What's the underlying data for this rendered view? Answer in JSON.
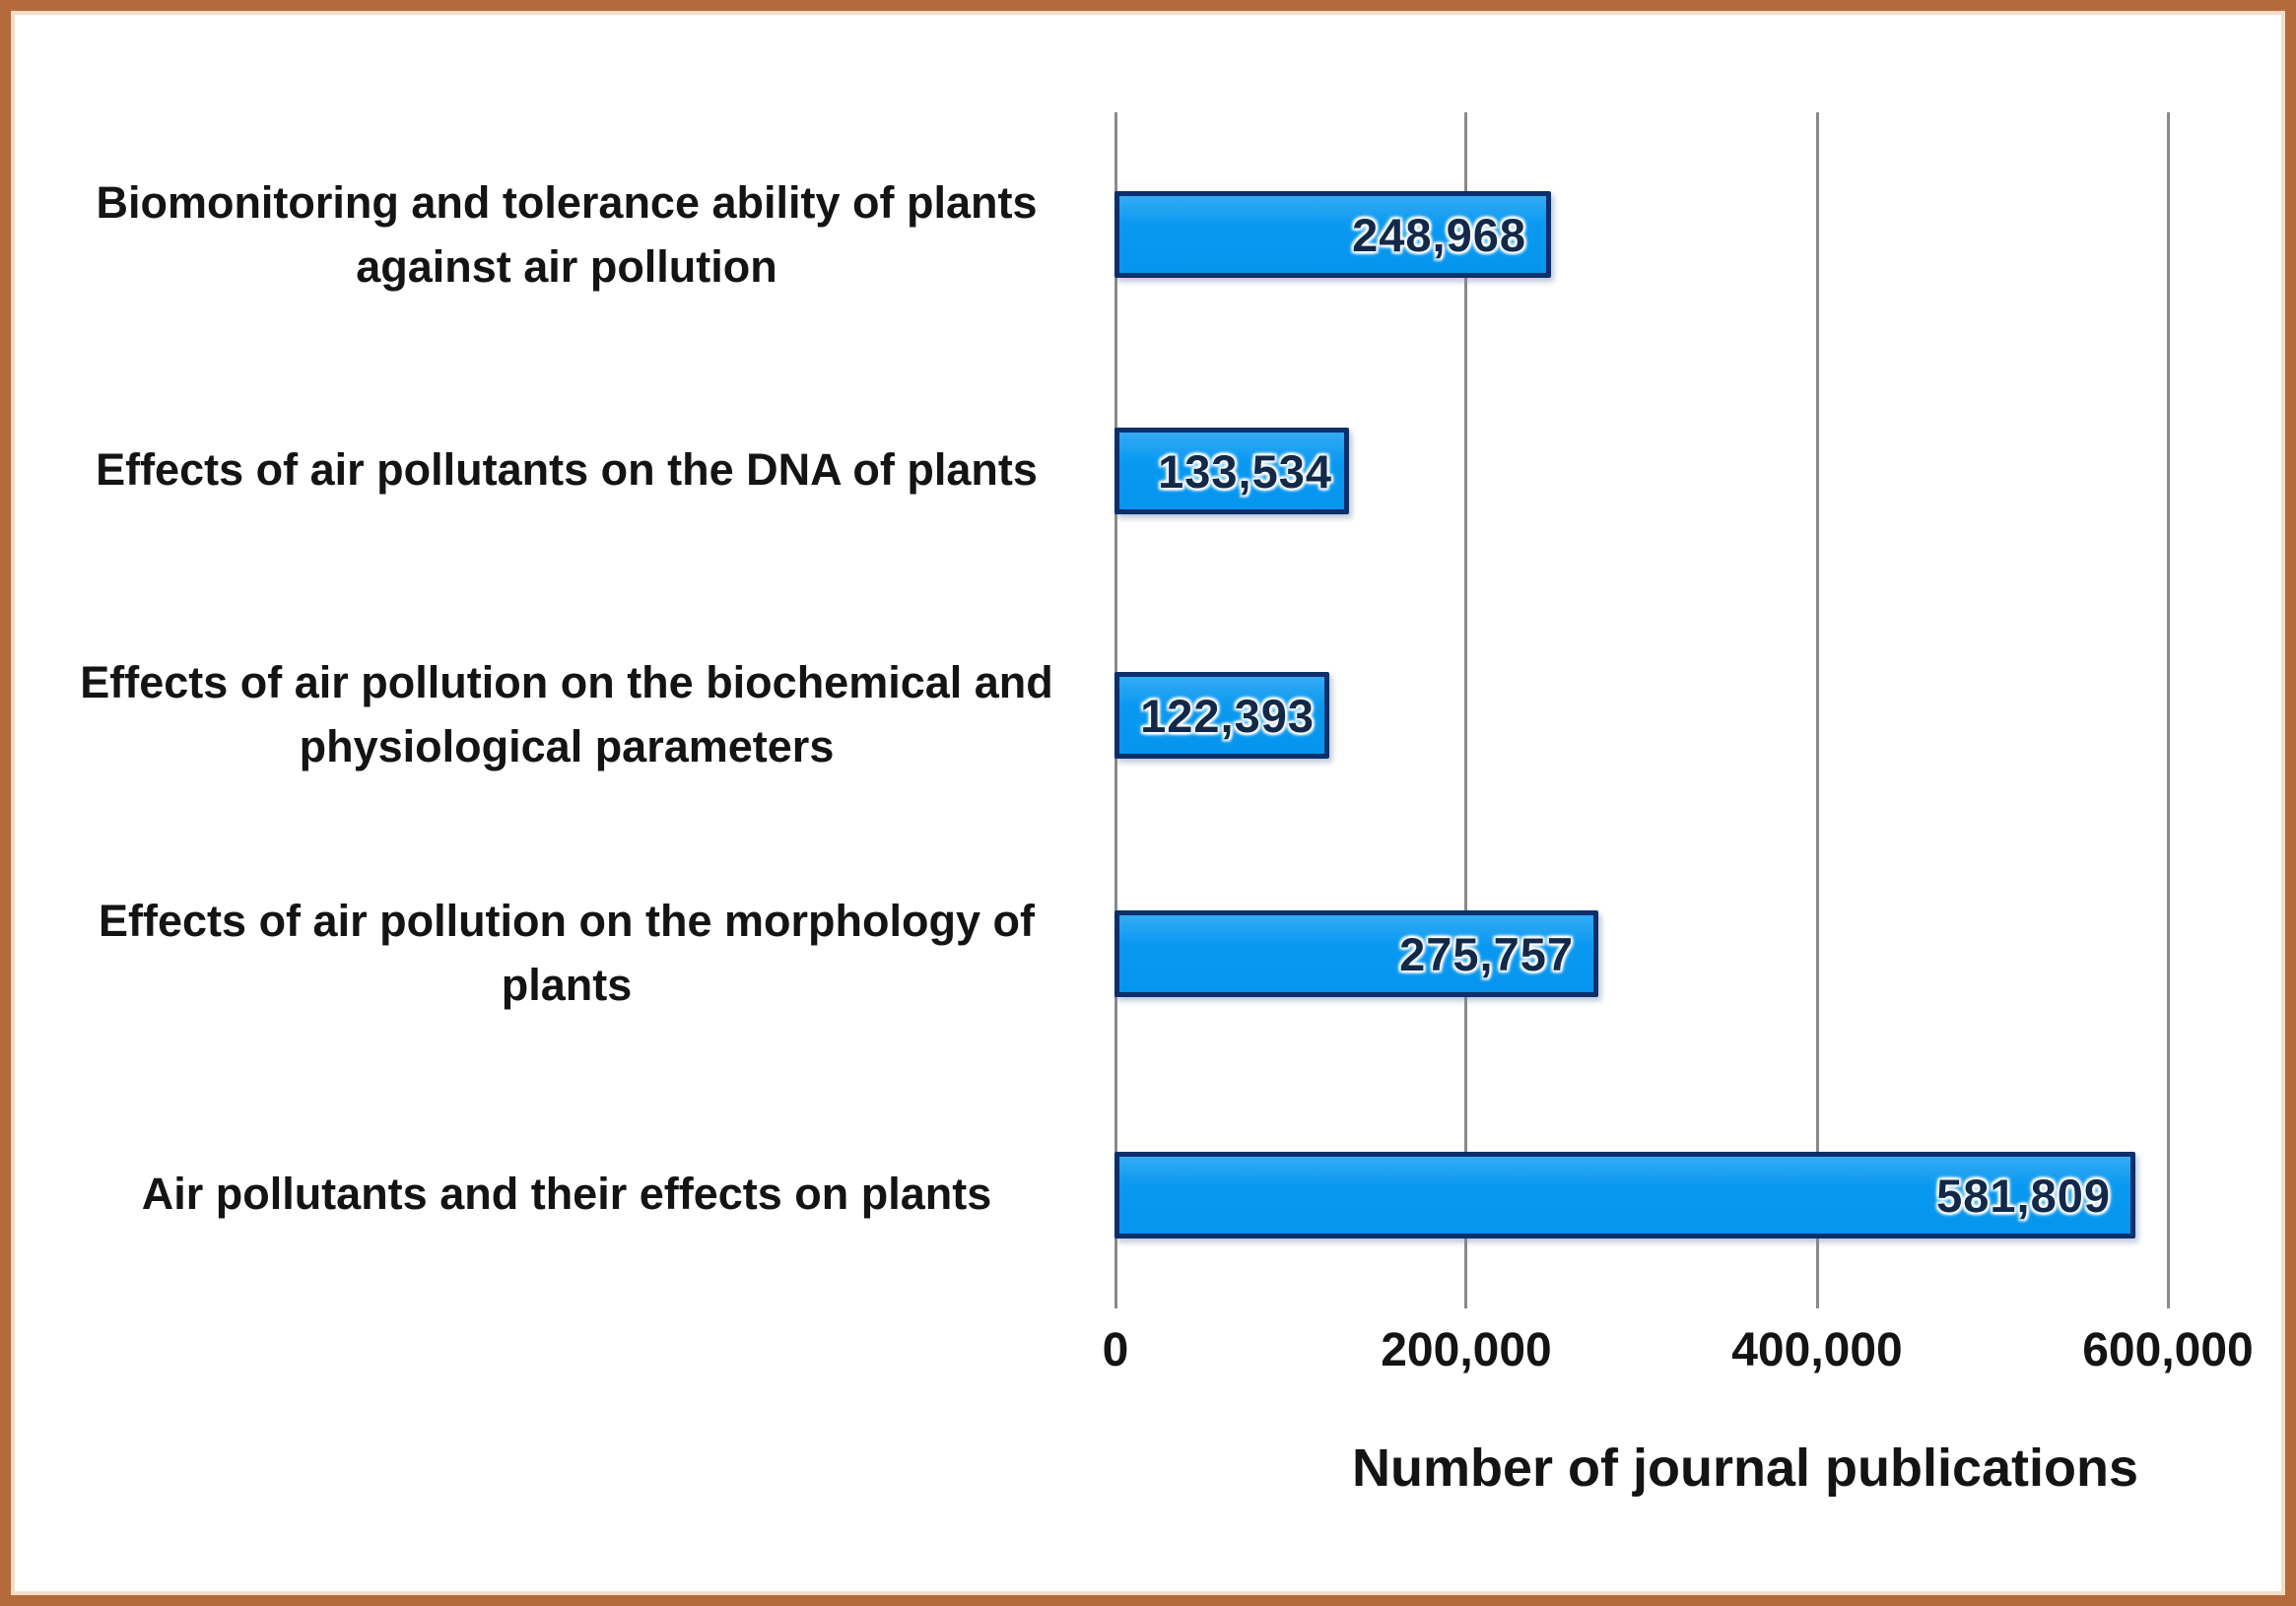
{
  "figure": {
    "frame_border_color": "#b46a3a",
    "background_color": "#ffffff"
  },
  "chart_data": {
    "type": "bar",
    "orientation": "horizontal",
    "title": "",
    "xlabel": "Number of journal publications",
    "ylabel": "",
    "categories": [
      "Biomonitoring and tolerance ability of plants against air pollution",
      "Effects of air pollutants on the DNA of plants",
      "Effects of air pollution on the biochemical and physiological parameters",
      "Effects of air pollution on the morphology of plants",
      "Air pollutants and their effects on plants"
    ],
    "values": [
      248968,
      133534,
      122393,
      275757,
      581809
    ],
    "value_labels": [
      "248,968",
      "133,534",
      "122,393",
      "275,757",
      "581,809"
    ],
    "xtick_labels": [
      "0",
      "200,000",
      "400,000",
      "600,000"
    ],
    "xtick_values": [
      0,
      200000,
      400000,
      600000
    ],
    "xlim": [
      0,
      665000
    ],
    "grid": "vertical-gridlines-only",
    "legend": "none",
    "bar_fill_color": "#0999f1",
    "bar_border_color": "#0d2f6a",
    "gridline_color": "#8a8a8a",
    "value_label_color": "#13294a"
  }
}
